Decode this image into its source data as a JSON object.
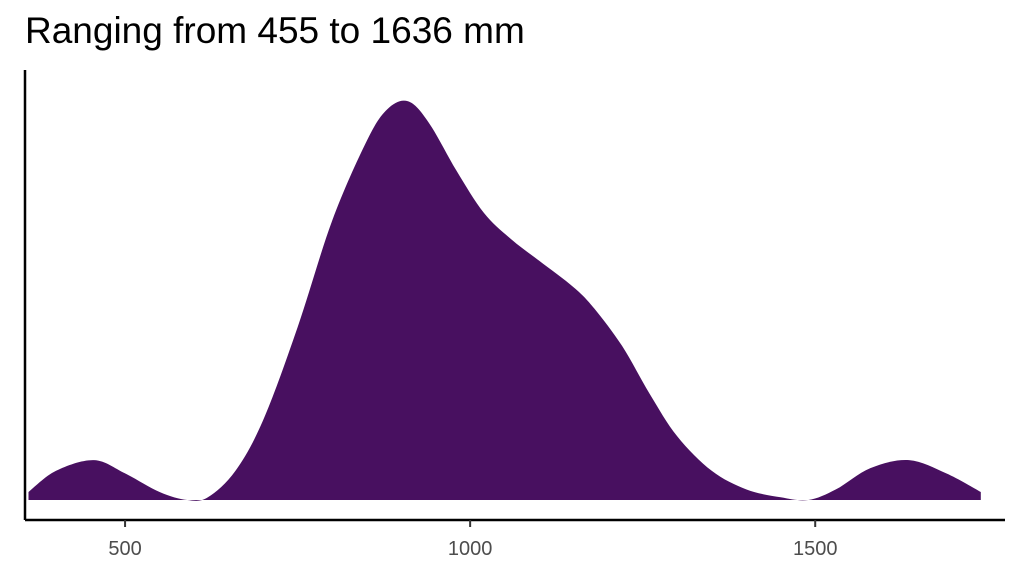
{
  "chart_data": {
    "type": "area",
    "title": "Ranging from 455 to 1636 mm",
    "xlabel": "",
    "ylabel": "",
    "xlim": [
      355,
      1775
    ],
    "ylim": [
      0,
      0.00155
    ],
    "x_ticks": [
      500,
      1000,
      1500
    ],
    "x_tick_labels": [
      "500",
      "1000",
      "1500"
    ],
    "fill_color": "#481060",
    "grid": false,
    "series": [
      {
        "x": [
          360,
          400,
          455,
          500,
          550,
          590,
          620,
          660,
          700,
          750,
          800,
          850,
          880,
          910,
          940,
          980,
          1020,
          1060,
          1100,
          1150,
          1180,
          1220,
          1260,
          1300,
          1350,
          1400,
          1450,
          1490,
          1530,
          1580,
          1636,
          1690,
          1740
        ],
        "y": [
          3e-05,
          0.00011,
          0.00015,
          0.0001,
          3e-05,
          0.0,
          1e-05,
          0.00011,
          0.0003,
          0.00065,
          0.00105,
          0.00135,
          0.00147,
          0.0015,
          0.00142,
          0.00124,
          0.00108,
          0.00098,
          0.0009,
          0.0008,
          0.00072,
          0.00058,
          0.0004,
          0.00024,
          0.00011,
          4e-05,
          1e-05,
          0.0,
          4e-05,
          0.00012,
          0.00015,
          0.0001,
          3e-05
        ]
      }
    ]
  }
}
